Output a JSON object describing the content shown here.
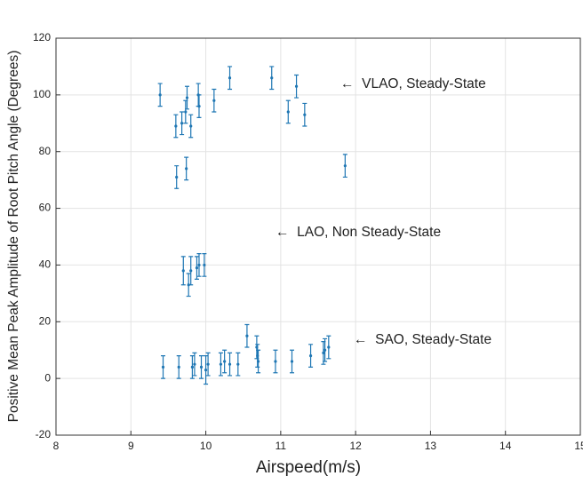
{
  "chart_data": {
    "type": "scatter",
    "x_label": "Airspeed(m/s)",
    "y_label": "Positive Mean Peak Amplitude of Root Pitch Angle (Degrees)",
    "x": [
      9.39,
      9.6,
      9.68,
      9.73,
      9.75,
      9.8,
      9.9,
      9.91,
      10.11,
      10.32,
      10.88,
      11.1,
      11.21,
      11.32,
      11.86,
      9.61,
      9.74,
      9.7,
      9.77,
      9.8,
      9.88,
      9.91,
      9.98,
      9.43,
      9.64,
      9.82,
      9.85,
      9.94,
      10.0,
      10.03,
      10.2,
      10.25,
      10.32,
      10.43,
      10.55,
      10.68,
      10.69,
      10.7,
      10.93,
      11.15,
      11.4,
      11.57,
      11.59,
      11.64
    ],
    "values": [
      100,
      89,
      90,
      94,
      99,
      89,
      100,
      96,
      98,
      106,
      106,
      94,
      103,
      93,
      75,
      71,
      74,
      38,
      33,
      38,
      39,
      40,
      40,
      4,
      4,
      4,
      5,
      4,
      3,
      5,
      5,
      6,
      5,
      5,
      15,
      11,
      8,
      6,
      6,
      6,
      8,
      9,
      10,
      11
    ],
    "errors": [
      4,
      4,
      4,
      4,
      4,
      4,
      4,
      4,
      4,
      4,
      4,
      4,
      4,
      4,
      4,
      4,
      4,
      5,
      4,
      5,
      4,
      4,
      4,
      4,
      4,
      4,
      4,
      4,
      5,
      4,
      4,
      4,
      4,
      4,
      4,
      4,
      4,
      4,
      4,
      4,
      4,
      4,
      4,
      4
    ],
    "color": "#1f77b4",
    "xlim": [
      8,
      15
    ],
    "ylim": [
      -20,
      120
    ],
    "xticks": [
      8,
      9,
      10,
      11,
      12,
      13,
      14,
      15
    ],
    "yticks": [
      -20,
      0,
      20,
      40,
      60,
      80,
      100,
      120
    ],
    "grid": true,
    "annotations": [
      "←  VLAO, Steady-State",
      "←  LAO, Non Steady-State",
      "←  SAO, Steady-State"
    ]
  }
}
